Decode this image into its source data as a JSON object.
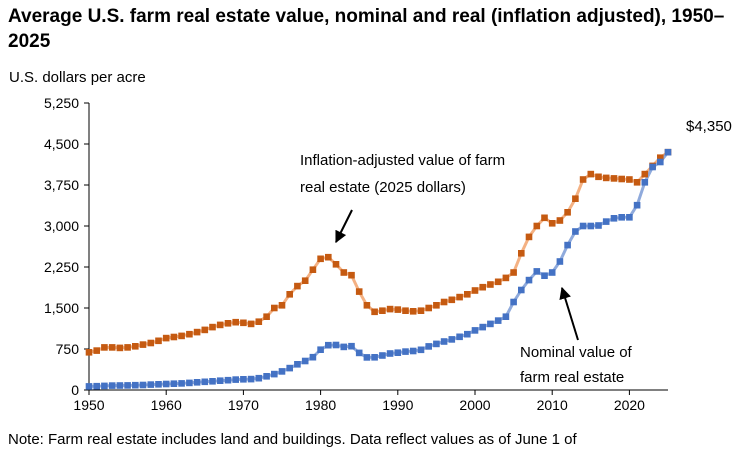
{
  "title": "Average U.S. farm real estate value, nominal and real (inflation adjusted), 1950–2025",
  "ylabel": "U.S. dollars per acre",
  "note": "Note: Farm real estate includes land and buildings. Data reflect values as of June 1 of",
  "annotations": {
    "real_line1": "Inflation-adjusted value of farm",
    "real_line2": "real estate (2025 dollars)",
    "nominal_line1": "Nominal value of",
    "nominal_line2": "farm real estate",
    "end_value": "$4,350"
  },
  "colors": {
    "real": "#c55a11",
    "nominal": "#4472c4"
  },
  "chart_data": {
    "type": "line",
    "title": "Average U.S. farm real estate value, nominal and real (inflation adjusted), 1950–2025",
    "ylabel": "U.S. dollars per acre",
    "xlim": [
      1950,
      2025
    ],
    "ylim": [
      0,
      5250
    ],
    "xticks": [
      1950,
      1960,
      1970,
      1980,
      1990,
      2000,
      2010,
      2020
    ],
    "yticks": [
      0,
      750,
      1500,
      2250,
      3000,
      3750,
      4500,
      5250
    ],
    "ytick_labels": [
      "0",
      "750",
      "1,500",
      "2,250",
      "3,000",
      "3,750",
      "4,500",
      "5,250"
    ],
    "x": [
      1950,
      1951,
      1952,
      1953,
      1954,
      1955,
      1956,
      1957,
      1958,
      1959,
      1960,
      1961,
      1962,
      1963,
      1964,
      1965,
      1966,
      1967,
      1968,
      1969,
      1970,
      1971,
      1972,
      1973,
      1974,
      1975,
      1976,
      1977,
      1978,
      1979,
      1980,
      1981,
      1982,
      1983,
      1984,
      1985,
      1986,
      1987,
      1988,
      1989,
      1990,
      1991,
      1992,
      1993,
      1994,
      1995,
      1996,
      1997,
      1998,
      1999,
      2000,
      2001,
      2002,
      2003,
      2004,
      2005,
      2006,
      2007,
      2008,
      2009,
      2010,
      2011,
      2012,
      2013,
      2014,
      2015,
      2016,
      2017,
      2018,
      2019,
      2020,
      2021,
      2022,
      2023,
      2024,
      2025
    ],
    "series": [
      {
        "name": "Inflation-adjusted value of farm real estate (2025 dollars)",
        "values": [
          690,
          720,
          780,
          780,
          770,
          780,
          800,
          830,
          860,
          900,
          950,
          970,
          990,
          1020,
          1060,
          1100,
          1150,
          1190,
          1220,
          1240,
          1230,
          1210,
          1250,
          1340,
          1500,
          1550,
          1750,
          1900,
          2000,
          2200,
          2400,
          2430,
          2300,
          2150,
          2100,
          1800,
          1550,
          1430,
          1450,
          1480,
          1470,
          1450,
          1440,
          1450,
          1500,
          1550,
          1610,
          1650,
          1700,
          1750,
          1820,
          1880,
          1930,
          1980,
          2050,
          2150,
          2500,
          2800,
          3000,
          3150,
          3050,
          3100,
          3250,
          3500,
          3850,
          3950,
          3900,
          3880,
          3870,
          3860,
          3850,
          3800,
          3950,
          4100,
          4250,
          4350
        ]
      },
      {
        "name": "Nominal value of farm real estate",
        "values": [
          65,
          70,
          75,
          80,
          82,
          85,
          88,
          92,
          98,
          105,
          110,
          115,
          120,
          130,
          140,
          150,
          160,
          170,
          180,
          190,
          195,
          200,
          215,
          250,
          290,
          340,
          400,
          470,
          530,
          600,
          737,
          819,
          823,
          788,
          801,
          679,
          596,
          599,
          632,
          668,
          683,
          703,
          713,
          736,
          798,
          844,
          887,
          926,
          974,
          1020,
          1090,
          1150,
          1210,
          1270,
          1340,
          1610,
          1830,
          2010,
          2170,
          2090,
          2150,
          2350,
          2650,
          2900,
          3000,
          3000,
          3010,
          3080,
          3140,
          3160,
          3160,
          3380,
          3800,
          4080,
          4170,
          4350
        ]
      }
    ],
    "legend": "inline annotations"
  }
}
